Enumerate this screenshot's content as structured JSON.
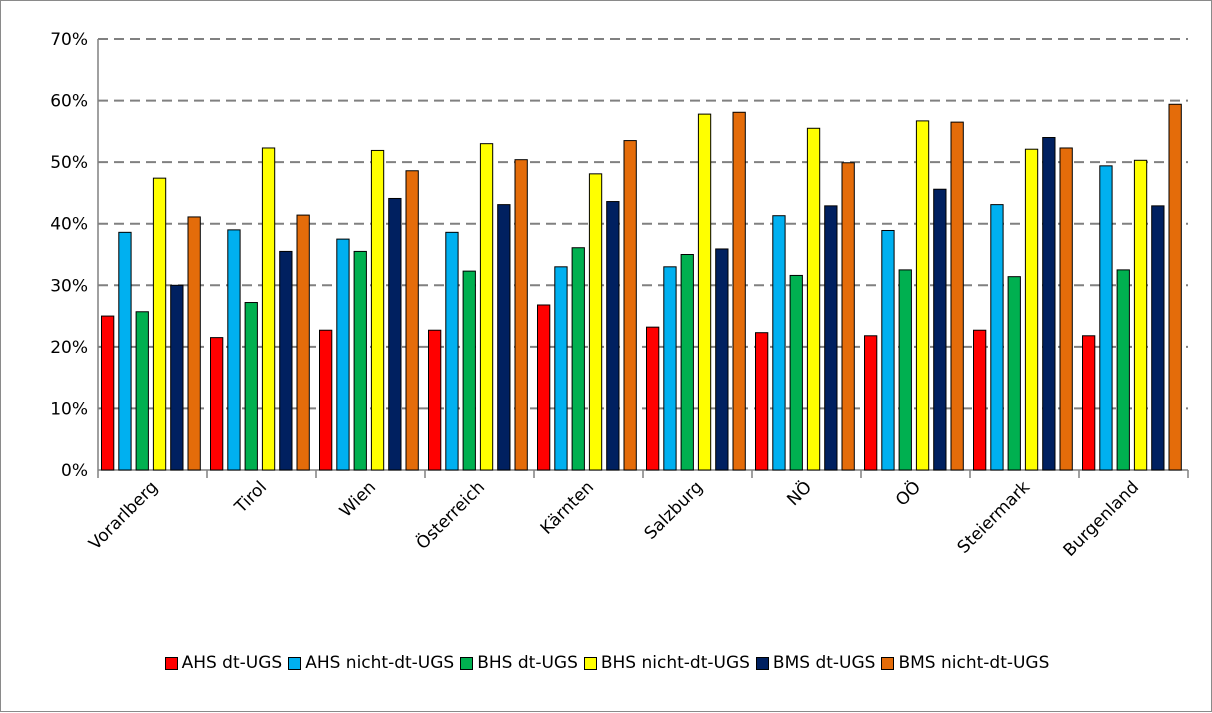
{
  "chart_data": {
    "type": "bar",
    "categories": [
      "Vorarlberg",
      "Tirol",
      "Wien",
      "Österreich",
      "Kärnten",
      "Salzburg",
      "NÖ",
      "OÖ",
      "Steiermark",
      "Burgenland"
    ],
    "series": [
      {
        "name": "AHS dt-UGS",
        "color": "#ff0000",
        "values": [
          25,
          21.5,
          22.7,
          22.7,
          26.8,
          23.2,
          22.3,
          21.8,
          22.7,
          21.8
        ]
      },
      {
        "name": "AHS nicht-dt-UGS",
        "color": "#00b0f0",
        "values": [
          38.6,
          39,
          37.5,
          38.6,
          33,
          33,
          41.3,
          38.9,
          43.1,
          49.4
        ]
      },
      {
        "name": "BHS dt-UGS",
        "color": "#00b050",
        "values": [
          25.7,
          27.2,
          35.5,
          32.3,
          36.1,
          35,
          31.6,
          32.5,
          31.4,
          32.5
        ]
      },
      {
        "name": "BHS nicht-dt-UGS",
        "color": "#ffff00",
        "values": [
          47.4,
          52.3,
          51.9,
          53,
          48.1,
          57.8,
          55.5,
          56.7,
          52.1,
          50.3
        ]
      },
      {
        "name": "BMS dt-UGS",
        "color": "#002060",
        "values": [
          30,
          35.5,
          44.1,
          43.1,
          43.6,
          35.9,
          42.9,
          45.6,
          54,
          42.9
        ]
      },
      {
        "name": "BMS nicht-dt-UGS",
        "color": "#e46c0a",
        "values": [
          41.1,
          41.4,
          48.6,
          50.4,
          53.5,
          58.1,
          49.9,
          56.5,
          52.3,
          59.4
        ]
      }
    ],
    "y_ticks": [
      "0%",
      "10%",
      "20%",
      "30%",
      "40%",
      "50%",
      "60%",
      "70%"
    ],
    "ylim": [
      0,
      70
    ],
    "grid": "horizontal dashed",
    "legend_position": "bottom"
  }
}
